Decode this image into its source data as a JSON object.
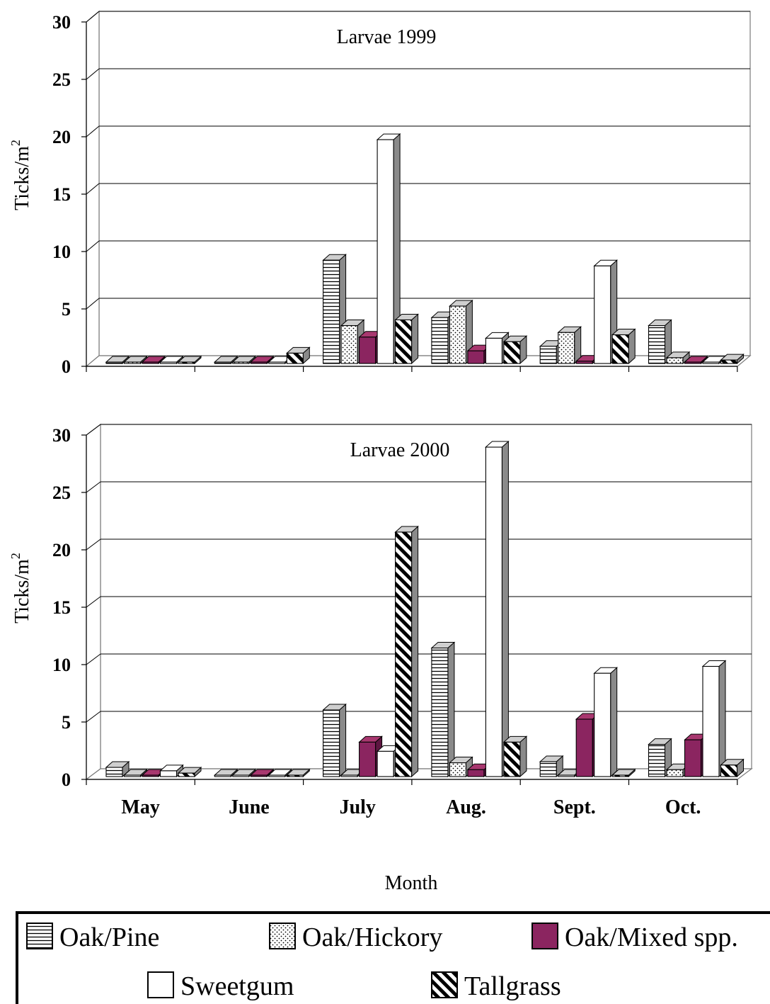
{
  "chart_data": [
    {
      "type": "bar",
      "title": "Larvae 1999",
      "xlabel": "",
      "ylabel": "Ticks/m",
      "ylabel_superscript": "2",
      "ylim": [
        0,
        30
      ],
      "yticks": [
        "0",
        "5",
        "10",
        "15",
        "20",
        "25",
        "30"
      ],
      "categories": [
        "May",
        "June",
        "July",
        "Aug.",
        "Sept.",
        "Oct."
      ],
      "series": [
        {
          "name": "Oak/Pine",
          "values": [
            0,
            0,
            9.0,
            4.0,
            1.5,
            3.3
          ]
        },
        {
          "name": "Oak/Hickory",
          "values": [
            0,
            0,
            3.3,
            5.0,
            2.7,
            0.5
          ]
        },
        {
          "name": "Oak/Mixed spp.",
          "values": [
            0,
            0,
            2.3,
            1.1,
            0.2,
            0.1
          ]
        },
        {
          "name": "Sweetgum",
          "values": [
            0,
            0,
            19.5,
            2.2,
            8.5,
            0.1
          ]
        },
        {
          "name": "Tallgrass",
          "values": [
            0,
            0.9,
            3.8,
            1.9,
            2.5,
            0.3
          ]
        }
      ],
      "grid": true
    },
    {
      "type": "bar",
      "title": "Larvae 2000",
      "xlabel": "Month",
      "ylabel": "Ticks/m",
      "ylabel_superscript": "2",
      "ylim": [
        0,
        30
      ],
      "yticks": [
        "0",
        "5",
        "10",
        "15",
        "20",
        "25",
        "30"
      ],
      "categories": [
        "May",
        "June",
        "July",
        "Aug.",
        "Sept.",
        "Oct."
      ],
      "series": [
        {
          "name": "Oak/Pine",
          "values": [
            0.8,
            0,
            5.8,
            11.2,
            1.3,
            2.8
          ]
        },
        {
          "name": "Oak/Hickory",
          "values": [
            0.1,
            0,
            0,
            1.2,
            0,
            0.6
          ]
        },
        {
          "name": "Oak/Mixed spp.",
          "values": [
            0.1,
            0,
            3.0,
            0.6,
            5.0,
            3.2
          ]
        },
        {
          "name": "Sweetgum",
          "values": [
            0.5,
            0,
            2.2,
            28.7,
            9.0,
            9.6
          ]
        },
        {
          "name": "Tallgrass",
          "values": [
            0.3,
            0,
            21.3,
            3.0,
            0,
            1.0
          ]
        }
      ],
      "grid": true
    }
  ],
  "legend": {
    "placement": "bottom",
    "items": [
      {
        "label": "Oak/Pine",
        "pattern": "horizontal-lines"
      },
      {
        "label": "Oak/Hickory",
        "pattern": "dots"
      },
      {
        "label": "Oak/Mixed spp.",
        "pattern": "solid",
        "color": "#8B2560"
      },
      {
        "label": "Sweetgum",
        "pattern": "solid",
        "color": "#ffffff"
      },
      {
        "label": "Tallgrass",
        "pattern": "diagonal-stripes"
      }
    ]
  },
  "colors": {
    "oak_mixed": "#8B2560",
    "oak_mixed_top": "#A8376F",
    "oak_mixed_side": "#5E1641",
    "side_gray": "#8a8a8a",
    "top_gray": "#cfcfcf",
    "grid": "#000000",
    "wall": "#7a7a7a"
  }
}
